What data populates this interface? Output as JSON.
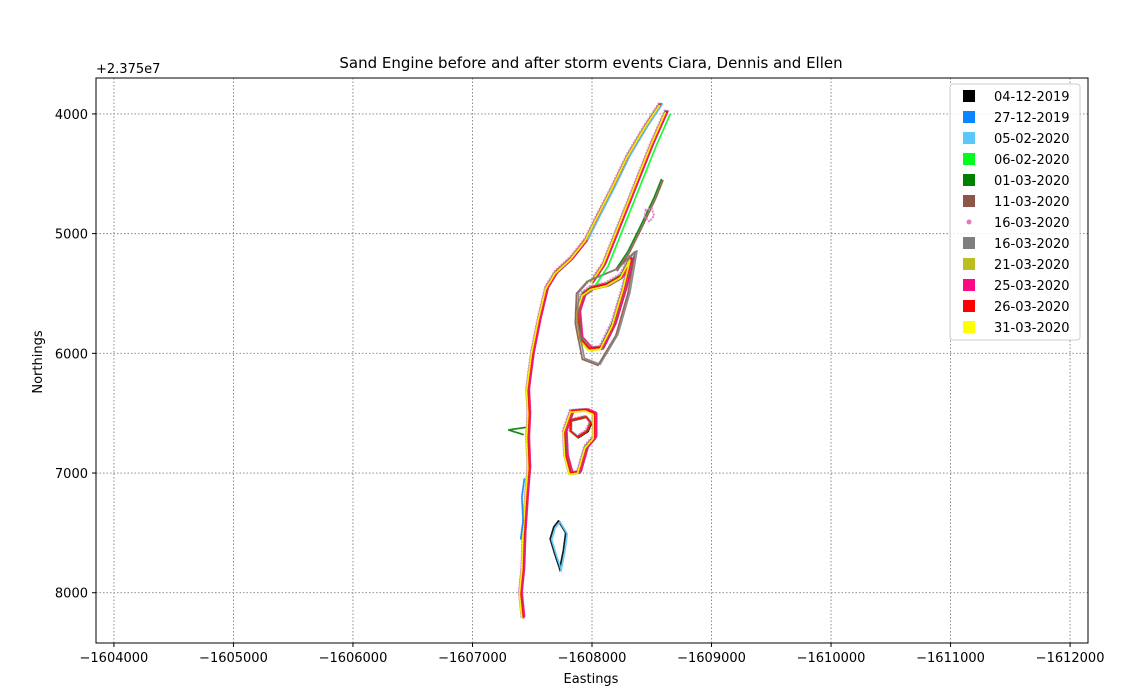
{
  "chart_data": {
    "type": "scatter",
    "title": "Sand Engine before and after storm events Ciara, Dennis and Ellen",
    "xlabel": "Eastings",
    "ylabel": "Northings",
    "y_offset_text": "+2.375e7",
    "xlim": [
      -1603850,
      -1612150
    ],
    "ylim": [
      3700,
      8420
    ],
    "y_inverted": true,
    "grid": true,
    "legend_placement": "upper right",
    "x_ticks": [
      -1604000,
      -1605000,
      -1606000,
      -1607000,
      -1608000,
      -1609000,
      -1610000,
      -1611000,
      -1612000
    ],
    "x_tick_labels": [
      "−1604000",
      "−1605000",
      "−1606000",
      "−1607000",
      "−1608000",
      "−1609000",
      "−1610000",
      "−1611000",
      "−1612000"
    ],
    "y_ticks": [
      4000,
      5000,
      6000,
      7000,
      8000
    ],
    "y_tick_labels": [
      "4000",
      "5000",
      "6000",
      "7000",
      "8000"
    ],
    "series": [
      {
        "name": "04-12-2019",
        "color": "#000000",
        "marker": "square"
      },
      {
        "name": "27-12-2019",
        "color": "#0a84ff",
        "marker": "square"
      },
      {
        "name": "05-02-2020",
        "color": "#5ac8fa",
        "marker": "square"
      },
      {
        "name": "06-02-2020",
        "color": "#00ff1e",
        "marker": "square"
      },
      {
        "name": "01-03-2020",
        "color": "#008000",
        "marker": "square"
      },
      {
        "name": "11-03-2020",
        "color": "#8c564b",
        "marker": "square"
      },
      {
        "name": "16-03-2020",
        "color": "#e377c2",
        "marker": "dot"
      },
      {
        "name": "16-03-2020",
        "color": "#7f7f7f",
        "marker": "square"
      },
      {
        "name": "21-03-2020",
        "color": "#bcbd22",
        "marker": "square"
      },
      {
        "name": "25-03-2020",
        "color": "#ff0a85",
        "marker": "square"
      },
      {
        "name": "26-03-2020",
        "color": "#ff0000",
        "marker": "square"
      },
      {
        "name": "31-03-2020",
        "color": "#ffff00",
        "marker": "square"
      }
    ],
    "features": {
      "shoreline": [
        [
          -1608570,
          3920
        ],
        [
          -1608450,
          4100
        ],
        [
          -1608300,
          4350
        ],
        [
          -1608180,
          4600
        ],
        [
          -1608050,
          4850
        ],
        [
          -1607950,
          5050
        ],
        [
          -1607830,
          5200
        ],
        [
          -1607700,
          5320
        ],
        [
          -1607620,
          5450
        ],
        [
          -1607560,
          5700
        ],
        [
          -1607500,
          6000
        ],
        [
          -1607460,
          6300
        ],
        [
          -1607470,
          6500
        ],
        [
          -1607460,
          6700
        ],
        [
          -1607470,
          6950
        ],
        [
          -1607450,
          7200
        ],
        [
          -1607430,
          7500
        ],
        [
          -1607420,
          7800
        ],
        [
          -1607400,
          8000
        ],
        [
          -1607420,
          8200
        ]
      ],
      "spit": [
        [
          -1608620,
          3980
        ],
        [
          -1608500,
          4250
        ],
        [
          -1608400,
          4500
        ],
        [
          -1608300,
          4750
        ],
        [
          -1608200,
          5000
        ],
        [
          -1608100,
          5250
        ],
        [
          -1608000,
          5400
        ]
      ],
      "outer_spit": [
        [
          -1608580,
          4550
        ],
        [
          -1608520,
          4700
        ],
        [
          -1608400,
          4950
        ],
        [
          -1608300,
          5150
        ],
        [
          -1608200,
          5300
        ]
      ],
      "lagoon": [
        [
          -1608000,
          5450
        ],
        [
          -1608130,
          5420
        ],
        [
          -1608250,
          5350
        ],
        [
          -1608330,
          5200
        ],
        [
          -1608270,
          5450
        ],
        [
          -1608180,
          5750
        ],
        [
          -1608080,
          5950
        ],
        [
          -1607980,
          5960
        ],
        [
          -1607900,
          5870
        ],
        [
          -1607880,
          5650
        ],
        [
          -1607930,
          5500
        ],
        [
          -1608000,
          5450
        ]
      ],
      "lagoon_outer": [
        [
          -1607960,
          5400
        ],
        [
          -1608200,
          5300
        ],
        [
          -1608360,
          5150
        ],
        [
          -1608300,
          5500
        ],
        [
          -1608200,
          5850
        ],
        [
          -1608050,
          6100
        ],
        [
          -1607920,
          6050
        ],
        [
          -1607860,
          5750
        ],
        [
          -1607870,
          5500
        ],
        [
          -1607960,
          5400
        ]
      ],
      "inlet": [
        [
          -1608450,
          4800
        ],
        [
          -1608500,
          4790
        ],
        [
          -1608520,
          4850
        ],
        [
          -1608480,
          4900
        ],
        [
          -1608440,
          4860
        ],
        [
          -1608450,
          4800
        ]
      ],
      "island": [
        [
          -1607830,
          6480
        ],
        [
          -1607950,
          6470
        ],
        [
          -1608020,
          6500
        ],
        [
          -1608020,
          6700
        ],
        [
          -1607950,
          6780
        ],
        [
          -1607890,
          6990
        ],
        [
          -1607820,
          7000
        ],
        [
          -1607780,
          6850
        ],
        [
          -1607770,
          6650
        ],
        [
          -1607830,
          6480
        ]
      ],
      "island_inner": [
        [
          -1607820,
          6560
        ],
        [
          -1607950,
          6530
        ],
        [
          -1607990,
          6580
        ],
        [
          -1607960,
          6650
        ],
        [
          -1607880,
          6700
        ],
        [
          -1607820,
          6650
        ],
        [
          -1607820,
          6560
        ]
      ],
      "south_patch": [
        [
          -1607720,
          7400
        ],
        [
          -1607780,
          7500
        ],
        [
          -1607760,
          7650
        ],
        [
          -1607730,
          7800
        ],
        [
          -1607690,
          7680
        ],
        [
          -1607650,
          7550
        ],
        [
          -1607680,
          7450
        ],
        [
          -1607720,
          7400
        ]
      ],
      "notch_left": [
        [
          -1607440,
          6620
        ],
        [
          -1607300,
          6640
        ],
        [
          -1607430,
          6680
        ]
      ],
      "south_blue": [
        [
          -1607450,
          7050
        ],
        [
          -1607430,
          7200
        ],
        [
          -1607440,
          7400
        ],
        [
          -1607420,
          7550
        ]
      ]
    }
  }
}
